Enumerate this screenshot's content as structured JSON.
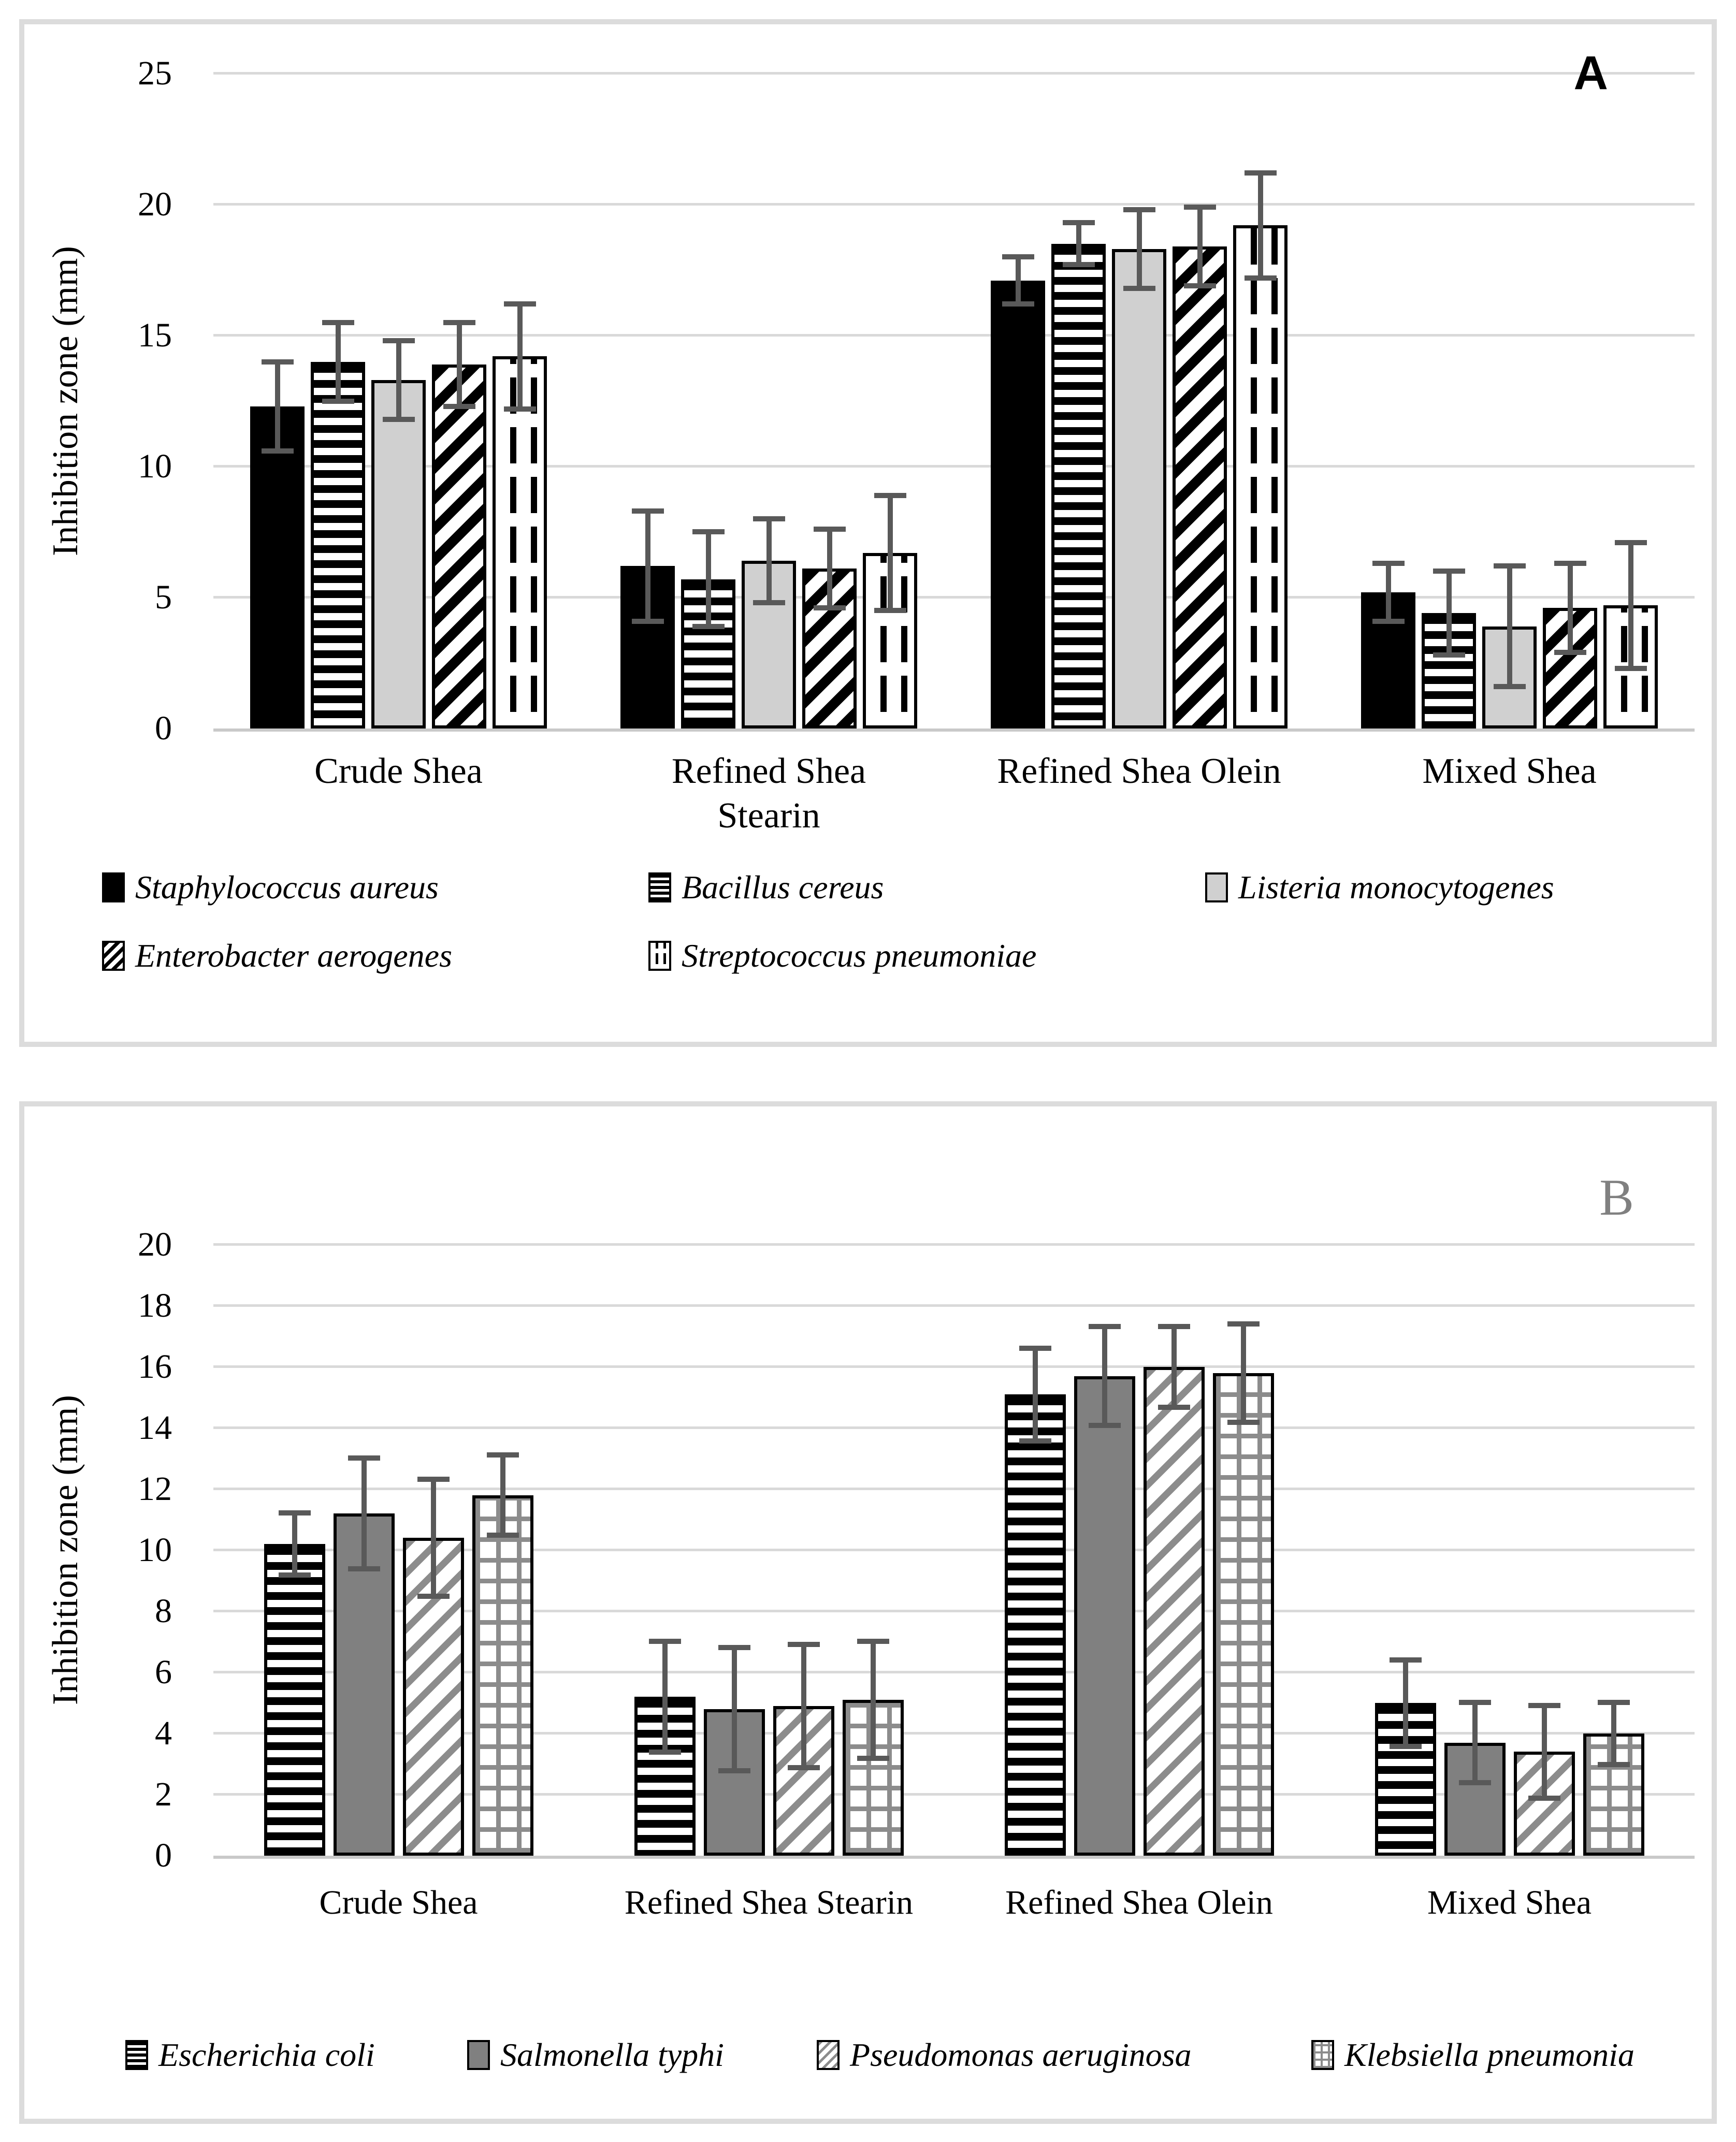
{
  "panels": [
    {
      "label": "A"
    },
    {
      "label": "B"
    }
  ],
  "chart_data": [
    {
      "type": "bar",
      "panel_label": "A",
      "title": "",
      "xlabel": "",
      "ylabel": "Inhibition zone (mm)",
      "ylim": [
        0,
        25
      ],
      "yticks": [
        0,
        5,
        10,
        15,
        20,
        25
      ],
      "grid": true,
      "legend_position": "bottom",
      "error_bars": true,
      "categories": [
        "Crude Shea",
        "Refined Shea\nStearin",
        "Refined Shea Olein",
        "Mixed Shea"
      ],
      "series": [
        {
          "name": "Staphylococcus aureus",
          "pattern": "solid-black",
          "values": [
            12.3,
            6.2,
            17.1,
            5.2
          ],
          "errors": [
            1.8,
            2.2,
            1.0,
            1.2
          ]
        },
        {
          "name": "Bacillus cereus",
          "pattern": "hstripes-black",
          "values": [
            14.0,
            5.7,
            18.5,
            4.4
          ],
          "errors": [
            1.6,
            1.9,
            0.9,
            1.7
          ]
        },
        {
          "name": "Listeria monocytogenes",
          "pattern": "solid-lightgray",
          "values": [
            13.3,
            6.4,
            18.3,
            3.9
          ],
          "errors": [
            1.6,
            1.7,
            1.6,
            2.4
          ]
        },
        {
          "name": "Enterobacter aerogenes",
          "pattern": "diag-black",
          "values": [
            13.9,
            6.1,
            18.4,
            4.6
          ],
          "errors": [
            1.7,
            1.6,
            1.6,
            1.8
          ]
        },
        {
          "name": "Streptococcus pneumoniae",
          "pattern": "dashed-vert",
          "values": [
            14.2,
            6.7,
            19.2,
            4.7
          ],
          "errors": [
            2.1,
            2.3,
            2.1,
            2.5
          ]
        }
      ]
    },
    {
      "type": "bar",
      "panel_label": "B",
      "title": "",
      "xlabel": "",
      "ylabel": "Inhibition zone (mm)",
      "ylim": [
        0,
        20
      ],
      "yticks": [
        0,
        2,
        4,
        6,
        8,
        10,
        12,
        14,
        16,
        18,
        20
      ],
      "grid": true,
      "legend_position": "bottom",
      "error_bars": true,
      "categories": [
        "Crude Shea",
        "Refined Shea Stearin",
        "Refined Shea Olein",
        "Mixed Shea"
      ],
      "series": [
        {
          "name": "Escherichia coli",
          "pattern": "hstripes-black",
          "values": [
            10.2,
            5.2,
            15.1,
            5.0
          ],
          "errors": [
            1.1,
            1.9,
            1.6,
            1.5
          ]
        },
        {
          "name": "Salmonella typhi",
          "pattern": "solid-gray",
          "values": [
            11.2,
            4.8,
            15.7,
            3.7
          ],
          "errors": [
            1.9,
            2.1,
            1.7,
            1.4
          ]
        },
        {
          "name": "Pseudomonas aeruginosa",
          "pattern": "diag-gray",
          "values": [
            10.4,
            4.9,
            16.0,
            3.4
          ],
          "errors": [
            2.0,
            2.1,
            1.4,
            1.6
          ]
        },
        {
          "name": "Klebsiella pneumonia",
          "pattern": "grid-gray",
          "values": [
            11.8,
            5.1,
            15.8,
            4.0
          ],
          "errors": [
            1.4,
            2.0,
            1.7,
            1.1
          ]
        }
      ]
    }
  ]
}
